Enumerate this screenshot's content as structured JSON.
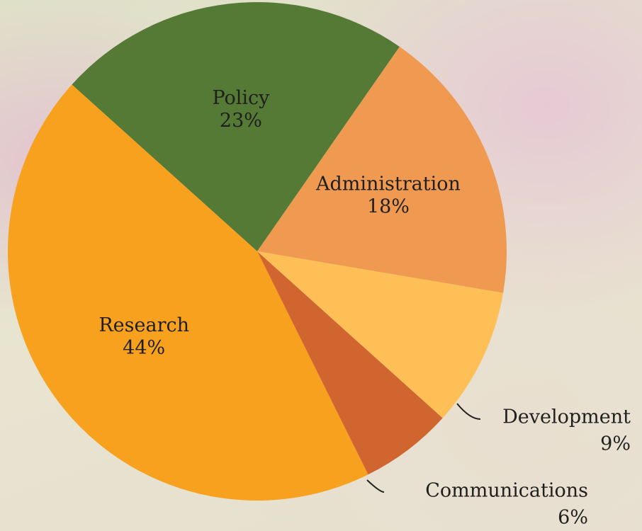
{
  "chart_data": {
    "type": "pie",
    "categories": [
      "Policy",
      "Administration",
      "Development",
      "Communications",
      "Research"
    ],
    "values": [
      23,
      18,
      9,
      6,
      44
    ],
    "value_labels": [
      "23%",
      "18%",
      "9%",
      "6%",
      "44%"
    ],
    "colors": [
      "#557a35",
      "#ef9a50",
      "#fdbf56",
      "#d06530",
      "#f7a11e"
    ]
  }
}
